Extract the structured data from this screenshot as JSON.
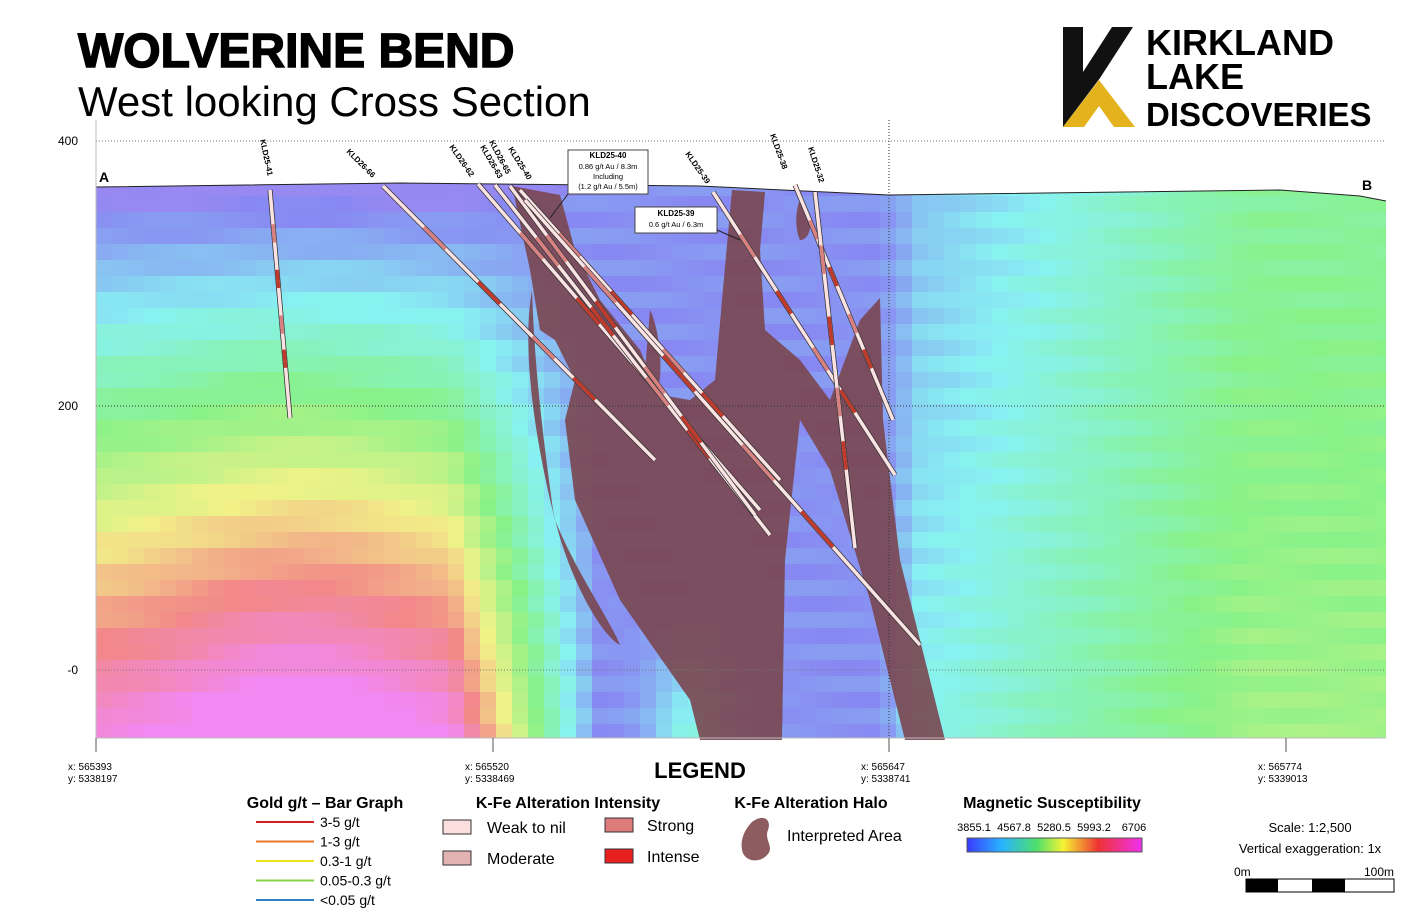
{
  "header": {
    "title": "WOLVERINE BEND",
    "subtitle": "West looking Cross Section"
  },
  "logo": {
    "line1": "KIRKLAND",
    "line2": "LAKE",
    "line3": "DISCOVERIES"
  },
  "section": {
    "start": "A",
    "end": "B",
    "elevation_labels": [
      "400",
      "200",
      "-0"
    ],
    "coordinates": [
      {
        "x": "x: 565393",
        "y": "y: 5338197"
      },
      {
        "x": "x: 565520",
        "y": "y: 5338469"
      },
      {
        "x": "x: 565647",
        "y": "y: 5338741"
      },
      {
        "x": "x: 565774",
        "y": "y: 5339013"
      }
    ]
  },
  "drill_holes": [
    "KLD25-41",
    "KLD26-66",
    "KLD26-62",
    "KLD26-63",
    "KLD26-65",
    "KLD25-40",
    "KLD25-39",
    "KLD25-38",
    "KLD25-32"
  ],
  "callouts": [
    {
      "hole": "KLD25-40",
      "lines": [
        "0.86 g/t Au / 8.3m",
        "Including",
        "(1.2 g/t Au / 5.5m)"
      ]
    },
    {
      "hole": "KLD25-39",
      "lines": [
        "0.6 g/t Au / 6.3m"
      ]
    }
  ],
  "legend": {
    "title": "LEGEND",
    "gold": {
      "title": "Gold g/t – Bar Graph",
      "items": [
        "3-5 g/t",
        "1-3 g/t",
        "0.3-1 g/t",
        "0.05-0.3 g/t",
        "<0.05 g/t"
      ]
    },
    "intensity": {
      "title": "K-Fe Alteration Intensity",
      "items": [
        "Weak to nil",
        "Moderate",
        "Strong",
        "Intense"
      ]
    },
    "halo": {
      "title": "K-Fe Alteration Halo",
      "item": "Interpreted Area"
    },
    "magnetic": {
      "title": "Magnetic Susceptibility",
      "values": [
        "3855.1",
        "4567.8",
        "5280.5",
        "5993.2",
        "6706"
      ]
    },
    "scale": {
      "ratio": "Scale: 1:2,500",
      "exaggeration": "Vertical exaggeration: 1x",
      "start": "0m",
      "end": "100m"
    }
  }
}
